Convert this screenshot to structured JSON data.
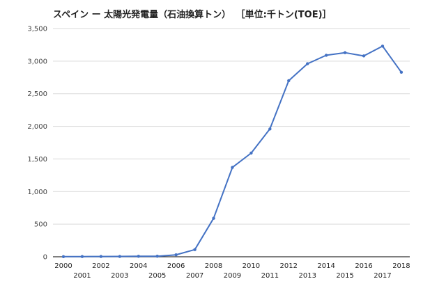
{
  "chart_data": {
    "type": "line",
    "title": "スペイン ー 太陽光発電量（石油換算トン）",
    "unit_label": "［単位:千トン(TOE)］",
    "xlabel": "",
    "ylabel": "",
    "ylim": [
      0,
      3500
    ],
    "yticks": [
      0,
      500,
      1000,
      1500,
      2000,
      2500,
      3000,
      3500
    ],
    "ytick_labels": [
      "0",
      "500",
      "1,000",
      "1,500",
      "2,000",
      "2,500",
      "3,000",
      "3,500"
    ],
    "grid": true,
    "legend": "none",
    "color": "#4472C4",
    "x": [
      "2000",
      "2001",
      "2002",
      "2003",
      "2004",
      "2005",
      "2006",
      "2007",
      "2008",
      "2009",
      "2010",
      "2011",
      "2012",
      "2013",
      "2014",
      "2015",
      "2016",
      "2017",
      "2018"
    ],
    "values": [
      2,
      3,
      4,
      5,
      7,
      9,
      30,
      110,
      590,
      1370,
      1590,
      1960,
      2700,
      2960,
      3090,
      3130,
      3080,
      3230,
      2830
    ]
  }
}
